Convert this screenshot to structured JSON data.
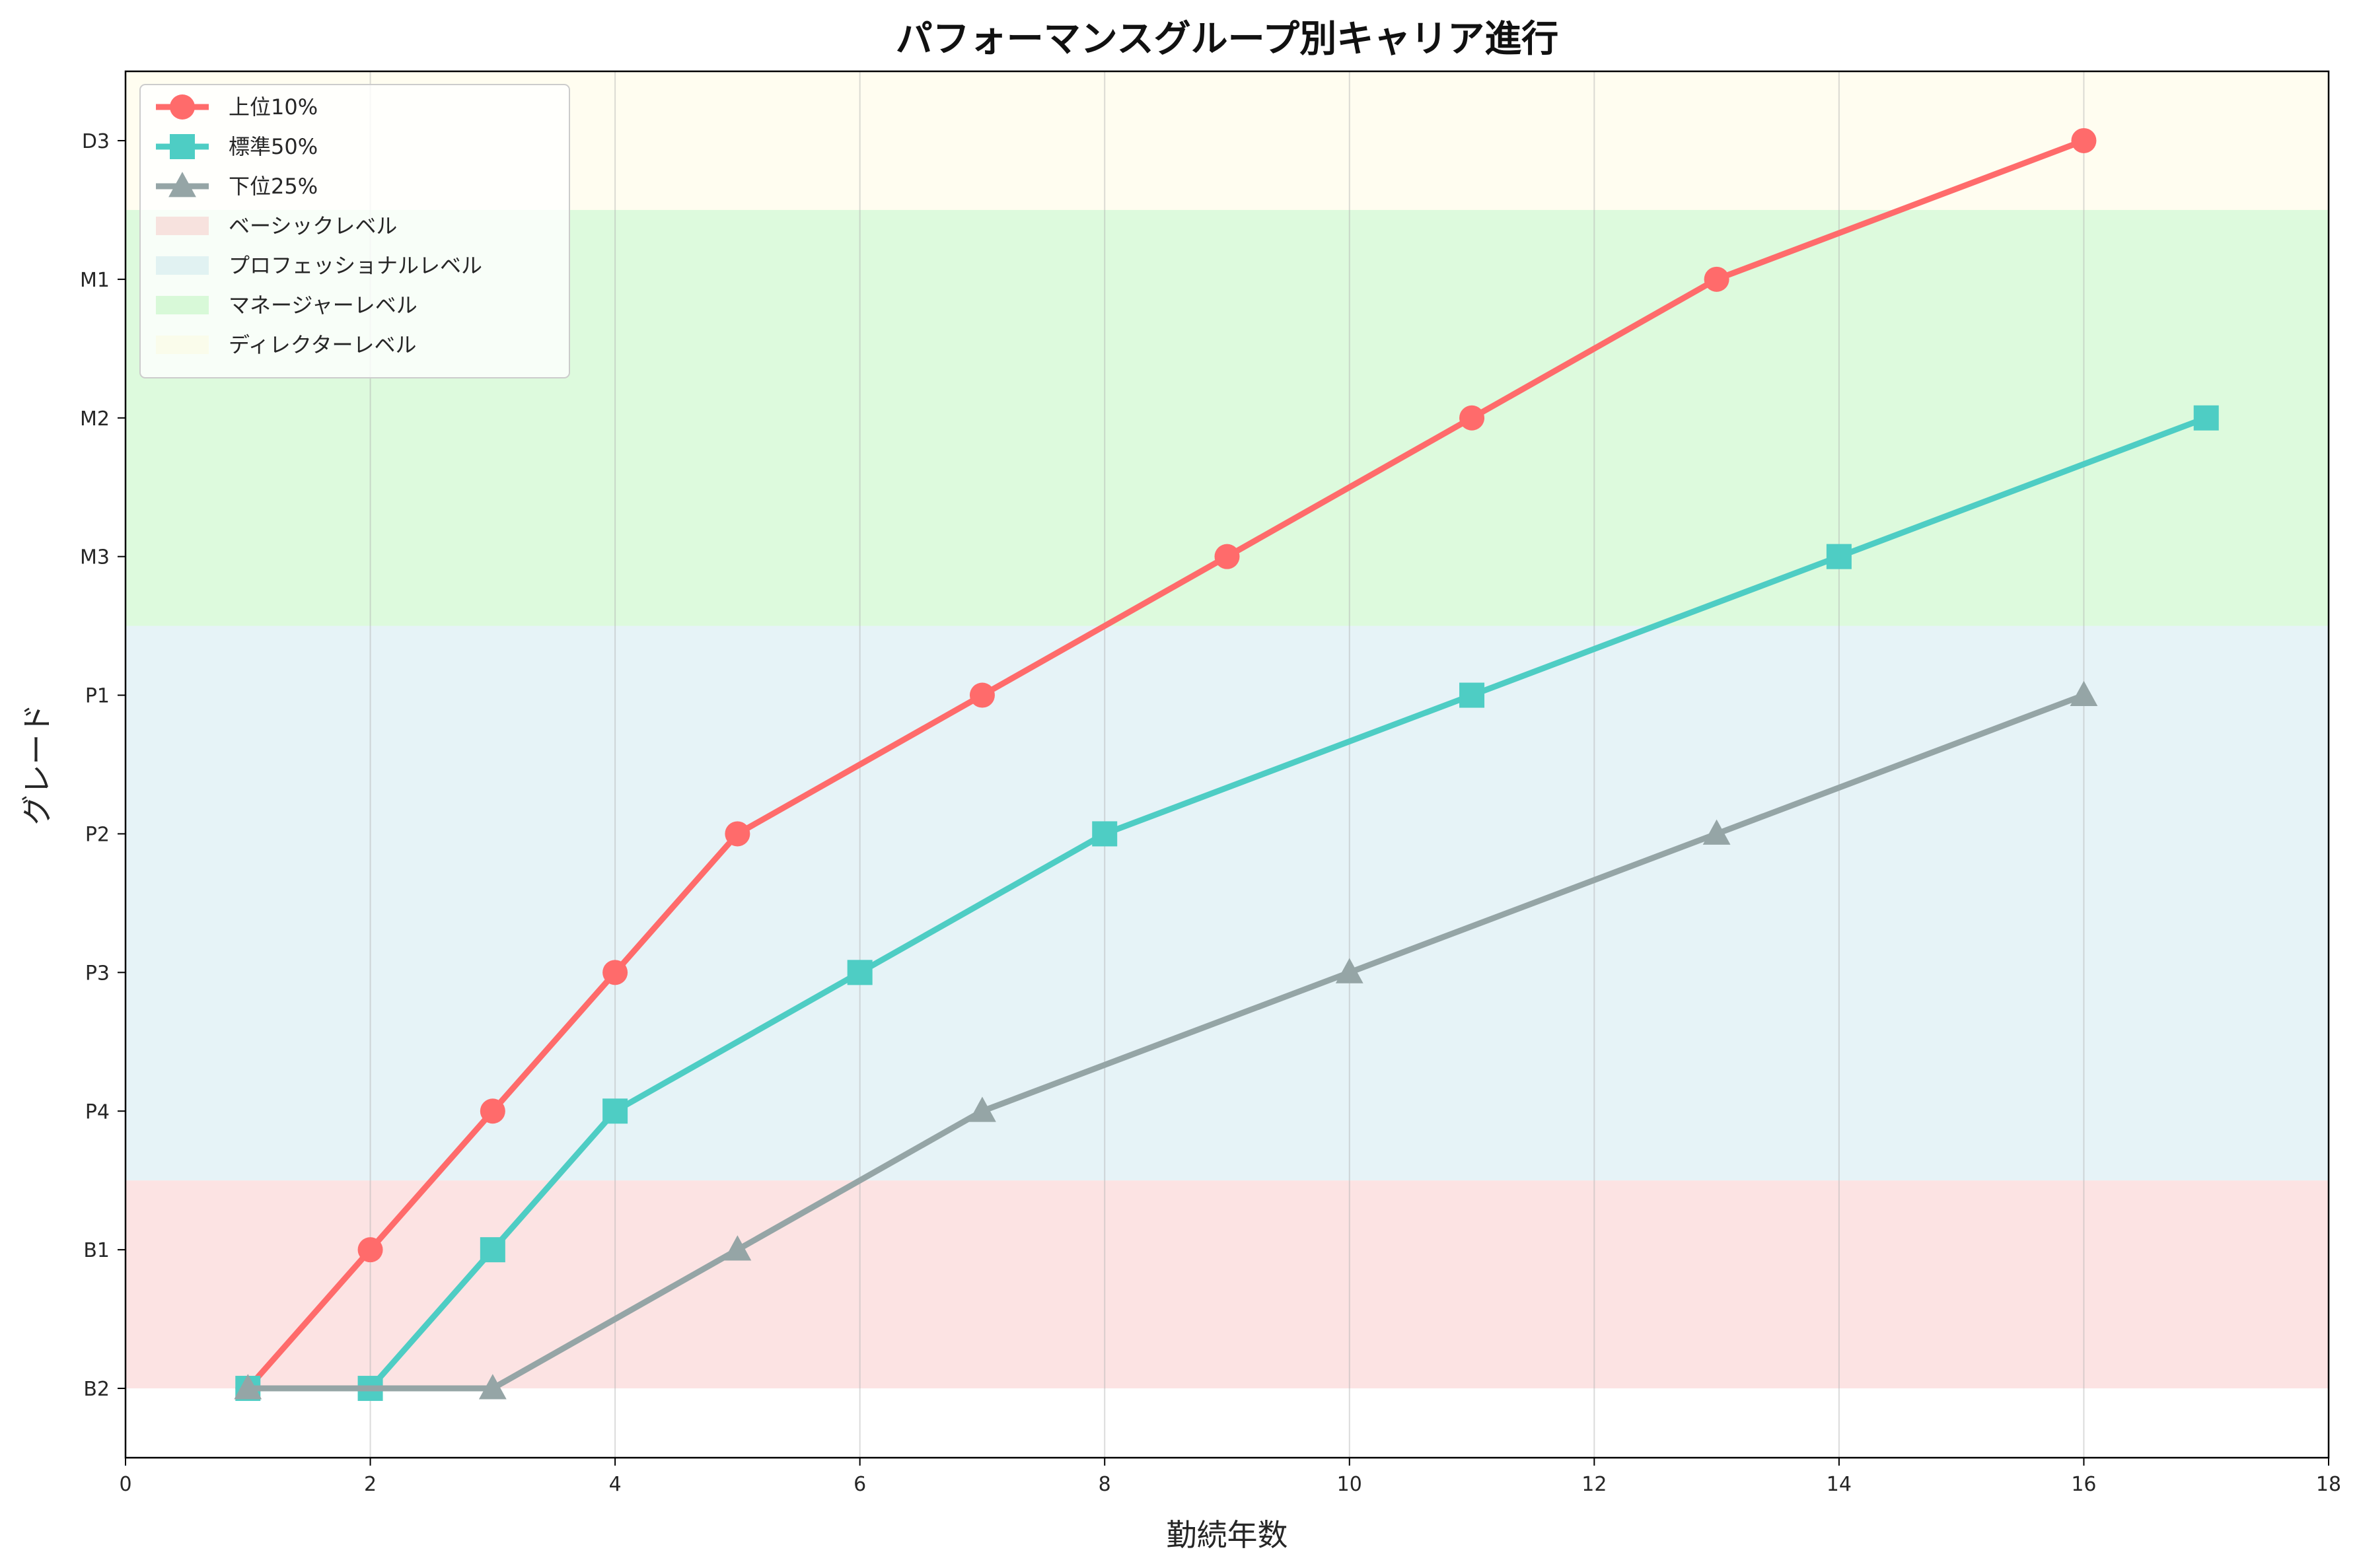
{
  "chart_data": {
    "type": "line",
    "title": "パフォーマンスグループ別キャリア進行",
    "xlabel": "勤続年数",
    "ylabel": "グレード",
    "xlim": [
      0,
      18
    ],
    "x_ticks": [
      0,
      2,
      4,
      6,
      8,
      10,
      12,
      14,
      16,
      18
    ],
    "x_tick_labels": [
      "0",
      "2",
      "4",
      "6",
      "8",
      "10",
      "12",
      "14",
      "16",
      "18"
    ],
    "ylim": [
      -0.5,
      9.5
    ],
    "y_categories": [
      "B2",
      "B1",
      "P4",
      "P3",
      "P2",
      "P1",
      "M3",
      "M2",
      "M1",
      "D3"
    ],
    "grid": true,
    "legend_position": "top-left",
    "bands": [
      {
        "name": "ベーシックレベル",
        "range": [
          0,
          1.5
        ],
        "color": "#f4a3a3"
      },
      {
        "name": "プロフェッショナルレベル",
        "range": [
          1.5,
          5.5
        ],
        "color": "#add8e6"
      },
      {
        "name": "マネージャーレベル",
        "range": [
          5.5,
          8.5
        ],
        "color": "#90ee90"
      },
      {
        "name": "ディレクターレベル",
        "range": [
          8.5,
          9.5
        ],
        "color": "#fffacd"
      }
    ],
    "series": [
      {
        "name": "上位10%",
        "marker": "circle",
        "color": "#ff6b6b",
        "x": [
          1,
          2,
          3,
          4,
          5,
          7,
          9,
          11,
          13,
          16
        ],
        "y": [
          "B2",
          "B1",
          "P4",
          "P3",
          "P2",
          "P1",
          "M3",
          "M2",
          "M1",
          "D3"
        ]
      },
      {
        "name": "標準50%",
        "marker": "square",
        "color": "#4ecdc4",
        "x": [
          1,
          2,
          3,
          4,
          6,
          8,
          11,
          14,
          17
        ],
        "y": [
          "B2",
          "B2",
          "B1",
          "P4",
          "P3",
          "P2",
          "P1",
          "M3",
          "M2"
        ]
      },
      {
        "name": "下位25%",
        "marker": "triangle",
        "color": "#95a5a6",
        "x": [
          1,
          3,
          5,
          7,
          10,
          13,
          16
        ],
        "y": [
          "B2",
          "B2",
          "B1",
          "P4",
          "P3",
          "P2",
          "P1"
        ]
      }
    ]
  }
}
